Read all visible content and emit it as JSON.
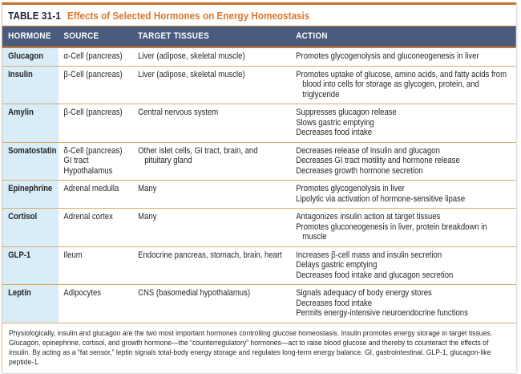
{
  "table_bar": {
    "label": "TABLE 31-1",
    "title": "Effects of Selected Hormones on Energy Homeostasis"
  },
  "table": {
    "columns": [
      "HORMONE",
      "SOURCE",
      "TARGET TISSUES",
      "ACTION"
    ],
    "rows": [
      {
        "hormone": "Glucagon",
        "source": [
          "α-Cell (pancreas)"
        ],
        "target": [
          "Liver (adipose, skeletal muscle)"
        ],
        "action": [
          "Promotes glycogenolysis and gluconeogenesis in liver"
        ]
      },
      {
        "hormone": "Insulin",
        "source": [
          "β-Cell (pancreas)"
        ],
        "target": [
          "Liver (adipose, skeletal muscle)"
        ],
        "action": [
          "Promotes uptake of glucose, amino acids, and fatty acids from blood into cells for storage as glycogen, protein, and triglyceride"
        ]
      },
      {
        "hormone": "Amylin",
        "source": [
          "β-Cell (pancreas)"
        ],
        "target": [
          "Central nervous system"
        ],
        "action": [
          "Suppresses glucagon release",
          "Slows gastric emptying",
          "Decreases food intake"
        ]
      },
      {
        "hormone": "Somatostatin",
        "source": [
          "δ-Cell (pancreas)",
          "GI tract",
          "Hypothalamus"
        ],
        "target": [
          "Other islet cells, GI tract, brain, and pituitary gland"
        ],
        "action": [
          "Decreases release of insulin and glucagon",
          "Decreases GI tract motility and hormone release",
          "Decreases growth hormone secretion"
        ]
      },
      {
        "hormone": "Epinephrine",
        "source": [
          "Adrenal medulla"
        ],
        "target": [
          "Many"
        ],
        "action": [
          "Promotes glycogenolysis in liver",
          "Lipolytic via activation of hormone-sensitive lipase"
        ]
      },
      {
        "hormone": "Cortisol",
        "source": [
          "Adrenal cortex"
        ],
        "target": [
          "Many"
        ],
        "action": [
          "Antagonizes insulin action at target tissues",
          "Promotes gluconeogenesis in liver, protein breakdown in muscle"
        ]
      },
      {
        "hormone": "GLP-1",
        "source": [
          "Ileum"
        ],
        "target": [
          "Endocrine pancreas, stomach, brain, heart"
        ],
        "action": [
          "Increases β-cell mass and insulin secretion",
          "Delays gastric emptying",
          "Decreases food intake and glucagon secretion"
        ]
      },
      {
        "hormone": "Leptin",
        "source": [
          "Adipocytes"
        ],
        "target": [
          "CNS (basomedial hypothalamus)"
        ],
        "action": [
          "Signals adequacy of body energy stores",
          "Decreases food intake",
          "Permits energy-intensive neuroendocrine functions"
        ]
      }
    ]
  },
  "footnote": "Physiologically, insulin and glucagon are the two most important hormones controlling glucose homeostasis. Insulin promotes energy storage in target tissues. Glucagon, epinephrine, cortisol, and growth hormone—the “counterregulatory” hormones—act to raise blood glucose and thereby to counteract the effects of insulin. By acting as a “fat sensor,” leptin signals total-body energy storage and regulates long-term energy balance. GI, gastrointestinal. GLP-1, glucagon-like peptide-1.",
  "colors": {
    "top_border": "#c4722e",
    "accent_orange_title": "#d9772e",
    "header_background": "#4a5b7e",
    "header_text": "#ffffff",
    "row_separator": "#dcaa70",
    "hormone_column_background": "#d9edf8",
    "body_text": "#262626"
  }
}
